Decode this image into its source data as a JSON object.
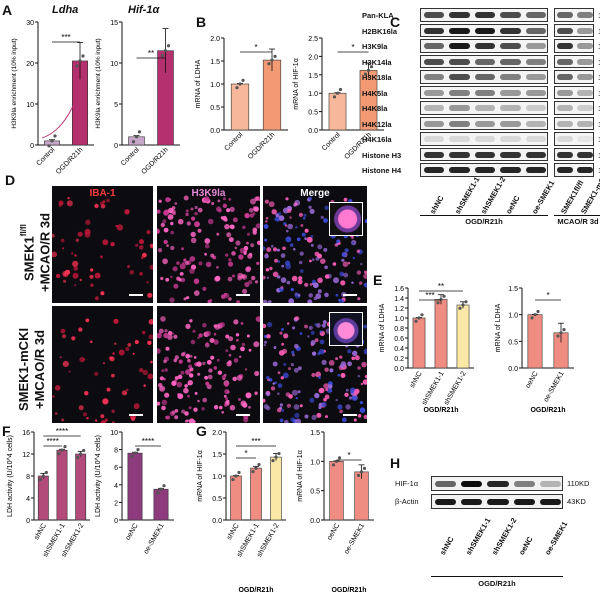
{
  "panels": {
    "A": "A",
    "B": "B",
    "C": "C",
    "D": "D",
    "E": "E",
    "F": "F",
    "G": "G",
    "H": "H"
  },
  "colors": {
    "control_bar": "#c8a6c9",
    "treat_bar": "#b5306e",
    "B_control": "#f6b79a",
    "B_treat": "#f39a74",
    "E_sh": "#f08d82",
    "E_sh2": "#fbe8a6",
    "F_left": "#b24a7a",
    "F_right": "#8e3b7e",
    "G_sh2": "#fbe8a6",
    "red": "#e8243b",
    "magenta": "#cf3aa6"
  },
  "panelA": {
    "left_title": "Ldha",
    "right_title": "Hif-1α",
    "ylabel": "H3K9la enrichment (10% input)",
    "left_categories": [
      "Control",
      "OGD/R21h"
    ],
    "right_categories": [
      "Control",
      "OGD/R21h"
    ],
    "left_sig": "***",
    "right_sig": "**"
  },
  "panelB": {
    "left_ylabel": "mRNA of LDHA",
    "right_ylabel": "mRNA of HIF-1α",
    "categories": [
      "Control",
      "OGD/R21h"
    ],
    "left_sig": "*",
    "right_sig": "*"
  },
  "panelC": {
    "rows": [
      {
        "label": "Pan-KLA",
        "kd": "15KD"
      },
      {
        "label": "H2BK16la",
        "kd": "14KD"
      },
      {
        "label": "H3K9la",
        "kd": "15KD"
      },
      {
        "label": "H3K14la",
        "kd": "15KD"
      },
      {
        "label": "H3K18la",
        "kd": "15KD"
      },
      {
        "label": "H4K5la",
        "kd": "11KD"
      },
      {
        "label": "H4K8la",
        "kd": "11KD"
      },
      {
        "label": "H4K12la",
        "kd": "11KD"
      },
      {
        "label": "H4K16la",
        "kd": "11KD"
      },
      {
        "label": "Histone H3",
        "kd": "15KD"
      },
      {
        "label": "Histone H4",
        "kd": "15KD"
      }
    ],
    "lanes_left": [
      "shNC",
      "shSMEK1-1",
      "shSMEK1-2",
      "oeNC",
      "oe-SMEK1"
    ],
    "lanes_right": [
      "SMEK1fl/fl",
      "SMEK1-mCKI"
    ],
    "group_left": "OGD/R21h",
    "group_right": "MCAO/R 3d"
  },
  "panelD": {
    "col_titles": [
      "IBA-1",
      "H3K9la",
      "Merge"
    ],
    "row_labels": [
      "SMEK1fl/fl +MCAO/R 3d",
      "SMEK1-mCKI +MCAO/R 3d"
    ],
    "row1_line1": "SMEK1",
    "row1_sup": "fl/fl",
    "row1_line2": "+MCAO/R 3d",
    "row2_line1": "SMEK1-mCKI",
    "row2_line2": "+MCAO/R 3d"
  },
  "panelE": {
    "ylabel": "mRNA of LDHA",
    "left_categories": [
      "shNC",
      "shSMEK1-1",
      "shSMEK1-2"
    ],
    "right_categories": [
      "oeNC",
      "oe-SMEK1"
    ],
    "group": "OGD/R21h",
    "sig_left_top": "**",
    "sig_left_low": "***",
    "sig_right": "*"
  },
  "panelF": {
    "ylabel": "LDH activity (U/10^4 cells)",
    "left_categories": [
      "shNC",
      "shSMEK1-1",
      "shSMEK1-2"
    ],
    "right_categories": [
      "oeNC",
      "oe-SMEK1"
    ],
    "sig_a": "****",
    "sig_b": "****",
    "sig_c": "****"
  },
  "panelG": {
    "ylabel": "mRNA of HIF-1α",
    "left_categories": [
      "shNC",
      "shSMEK1-1",
      "shSMEK1-2"
    ],
    "right_categories": [
      "oeNC",
      "oe-SMEK1"
    ],
    "group": "OGD/R21h",
    "sig_top": "***",
    "sig_low": "*",
    "sig_right": "*"
  },
  "panelH": {
    "rows": [
      {
        "label": "HIF-1α",
        "kd": "110KD"
      },
      {
        "label": "β-Actin",
        "kd": "43KD"
      }
    ],
    "lanes": [
      "shNC",
      "shSMEK1-1",
      "shSMEK1-2",
      "oeNC",
      "oe-SMEK1"
    ],
    "group": "OGD/R21h"
  },
  "chart_data": [
    {
      "type": "bar",
      "panel": "A-left",
      "title": "Ldha",
      "ylabel": "H3K9la enrichment (10% input)",
      "categories": [
        "Control",
        "OGD/R21h"
      ],
      "values": [
        1,
        20.5
      ],
      "ylim": [
        0,
        30
      ],
      "yticks": [
        0,
        10,
        20,
        30
      ]
    },
    {
      "type": "bar",
      "panel": "A-right",
      "title": "Hif-1α",
      "ylabel": "H3K9la enrichment (10% input)",
      "categories": [
        "Control",
        "OGD/R21h"
      ],
      "values": [
        1,
        11.5
      ],
      "ylim": [
        0,
        15
      ],
      "yticks": [
        0,
        5,
        10,
        15
      ]
    },
    {
      "type": "bar",
      "panel": "B-left",
      "ylabel": "mRNA of LDHA",
      "categories": [
        "Control",
        "OGD/R21h"
      ],
      "values": [
        1.0,
        1.52
      ],
      "ylim": [
        0,
        2.0
      ],
      "yticks": [
        0,
        0.5,
        1.0,
        1.5,
        2.0
      ]
    },
    {
      "type": "bar",
      "panel": "B-right",
      "ylabel": "mRNA of HIF-1α",
      "categories": [
        "Control",
        "OGD/R21h"
      ],
      "values": [
        1.0,
        1.62
      ],
      "ylim": [
        0,
        2.5
      ],
      "yticks": [
        0,
        0.5,
        1.0,
        1.5,
        2.0,
        2.5
      ]
    },
    {
      "type": "bar",
      "panel": "E-left",
      "ylabel": "mRNA of LDHA",
      "categories": [
        "shNC",
        "shSMEK1-1",
        "shSMEK1-2"
      ],
      "values": [
        1.0,
        1.37,
        1.26
      ],
      "ylim": [
        0,
        1.6
      ],
      "yticks": [
        0,
        0.2,
        0.4,
        0.6,
        0.8,
        1.0,
        1.2,
        1.4,
        1.6
      ]
    },
    {
      "type": "bar",
      "panel": "E-right",
      "ylabel": "mRNA of LDHA",
      "categories": [
        "oeNC",
        "oe-SMEK1"
      ],
      "values": [
        1.0,
        0.66
      ],
      "ylim": [
        0,
        1.5
      ],
      "yticks": [
        0,
        0.5,
        1.0,
        1.5
      ]
    },
    {
      "type": "bar",
      "panel": "F-left",
      "ylabel": "LDH activity (U/10^4 cells)",
      "categories": [
        "shNC",
        "shSMEK1-1",
        "shSMEK1-2"
      ],
      "values": [
        8.0,
        12.7,
        12.0
      ],
      "ylim": [
        0,
        16
      ],
      "yticks": [
        0,
        4,
        8,
        12,
        16
      ]
    },
    {
      "type": "bar",
      "panel": "F-right",
      "ylabel": "LDH activity (U/10^4 cells)",
      "categories": [
        "oeNC",
        "oe-SMEK1"
      ],
      "values": [
        7.6,
        3.5
      ],
      "ylim": [
        0,
        10
      ],
      "yticks": [
        0,
        2,
        4,
        6,
        8,
        10
      ]
    },
    {
      "type": "bar",
      "panel": "G-left",
      "ylabel": "mRNA of HIF-1α",
      "categories": [
        "shNC",
        "shSMEK1-1",
        "shSMEK1-2"
      ],
      "values": [
        1.0,
        1.18,
        1.43
      ],
      "ylim": [
        0,
        2.0
      ],
      "yticks": [
        0,
        0.5,
        1.0,
        1.5,
        2.0
      ]
    },
    {
      "type": "bar",
      "panel": "G-right",
      "ylabel": "mRNA of HIF-1α",
      "categories": [
        "oeNC",
        "oe-SMEK1"
      ],
      "values": [
        1.0,
        0.82
      ],
      "ylim": [
        0,
        1.5
      ],
      "yticks": [
        0,
        0.5,
        1.0,
        1.5
      ]
    }
  ]
}
